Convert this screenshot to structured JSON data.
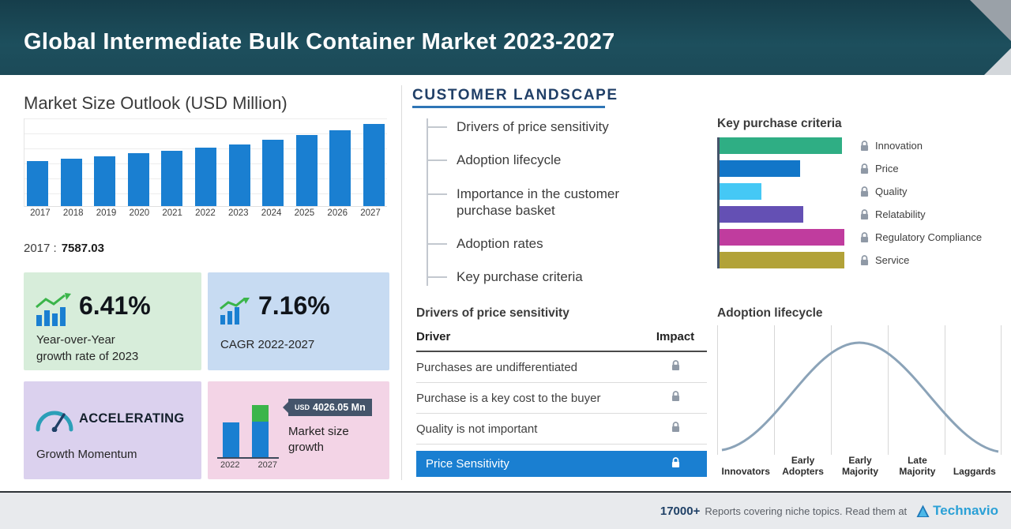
{
  "header": {
    "title": "Global Intermediate Bulk Container Market 2023-2027"
  },
  "left": {
    "stat_year": "2017 :",
    "stat_value": "7587.03",
    "cards": {
      "yoy": {
        "value": "6.41%",
        "line1": "Year-over-Year",
        "line2": "growth rate of 2023"
      },
      "cagr": {
        "value": "7.16%",
        "label": "CAGR  2022-2027"
      },
      "momentum": {
        "title": "ACCELERATING",
        "subtitle": "Growth Momentum"
      },
      "growth": {
        "currency": "USD",
        "amount": "4026.05 Mn",
        "label": "Market size growth"
      }
    }
  },
  "customer_landscape": {
    "title": "CUSTOMER  LANDSCAPE",
    "items": [
      "Drivers of price sensitivity",
      "Adoption lifecycle",
      "Importance in the customer purchase basket",
      "Adoption rates",
      "Key purchase criteria"
    ]
  },
  "drivers_table": {
    "title": "Drivers of price sensitivity",
    "columns": {
      "driver": "Driver",
      "impact": "Impact"
    },
    "rows": [
      "Purchases are undifferentiated",
      "Purchase is a key cost to the buyer",
      "Quality is not important"
    ],
    "highlight_row": "Price Sensitivity"
  },
  "footer": {
    "count": "17000+",
    "text": "Reports covering niche topics. Read them at",
    "brand": "Technavio"
  },
  "colors": {
    "accent_blue": "#1a7fd1",
    "header_teal": "#1c4a58",
    "badge_slate": "#44546a",
    "highlight_row": "#1a7fd1",
    "lock_gray": "#8f99a6"
  },
  "chart_data": [
    {
      "type": "bar",
      "title": "Market Size Outlook (USD Million)",
      "categories": [
        "2017",
        "2018",
        "2019",
        "2020",
        "2021",
        "2022",
        "2023",
        "2024",
        "2025",
        "2026",
        "2027"
      ],
      "values": [
        7587.03,
        7977,
        8387,
        8818,
        9270,
        9746,
        10371,
        11113,
        11909,
        12762,
        13773
      ],
      "note": "Only 2017 value (7587.03) is labeled on screen; remaining values estimated from bar heights and stated growth rates",
      "bar_color": "#1a7fd1",
      "ylabel": "USD Million",
      "grid": true
    },
    {
      "type": "bar",
      "orientation": "horizontal",
      "title": "Key purchase criteria",
      "categories": [
        "Innovation",
        "Price",
        "Quality",
        "Relatability",
        "Regulatory Compliance",
        "Service"
      ],
      "values": [
        97,
        64,
        33,
        66,
        99,
        99
      ],
      "note": "relative bar lengths (percent of longest); exact values not shown (locked)",
      "colors": [
        "#2fae84",
        "#1276c8",
        "#45c8f5",
        "#6450b4",
        "#c03c9e",
        "#b2a238"
      ],
      "legend_position": "right"
    },
    {
      "type": "line",
      "title": "Adoption lifecycle",
      "categories": [
        "Innovators",
        "Early Adopters",
        "Early Majority",
        "Late Majority",
        "Laggards"
      ],
      "shape": "bell curve peaking at Early Majority",
      "line_color": "#8ba3b8",
      "grid": true
    },
    {
      "type": "bar",
      "title": "Market size growth",
      "categories": [
        "2022",
        "2027"
      ],
      "values": [
        44,
        66
      ],
      "annotation": "USD 4026.05 Mn",
      "note": "2027 bar topped with green segment representing absolute growth vs 2022",
      "colors": [
        "#1a7fd1",
        "#3bb54a"
      ]
    }
  ]
}
